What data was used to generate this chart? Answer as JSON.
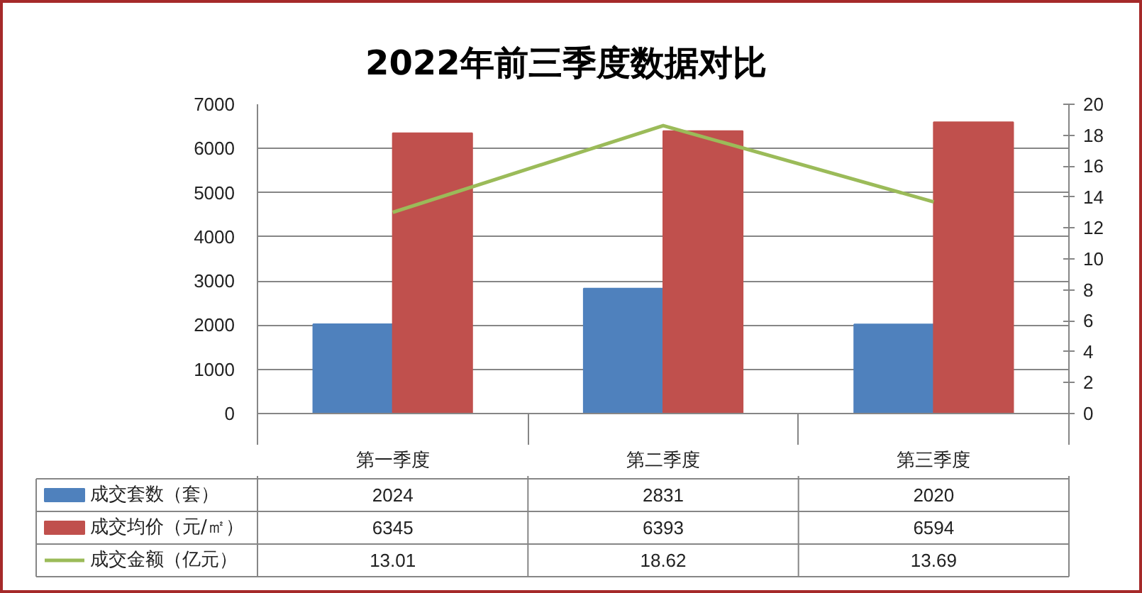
{
  "chart_data": {
    "type": "bar",
    "title": "2022年前三季度数据对比",
    "categories": [
      "第一季度",
      "第二季度",
      "第三季度"
    ],
    "series": [
      {
        "name": "成交套数（套）",
        "color": "#4f81bd",
        "values": [
          2024,
          2831,
          2020
        ]
      },
      {
        "name": "成交均价（元/㎡）",
        "color": "#c0504d",
        "values": [
          6345,
          6393,
          6594
        ]
      },
      {
        "name": "成交金额（亿元）",
        "type": "line",
        "axis": "y2",
        "color": "#9bbb59",
        "values": [
          13.01,
          18.62,
          13.69
        ]
      }
    ],
    "ylim": [
      0,
      7000
    ],
    "yticks": [
      0,
      1000,
      2000,
      3000,
      4000,
      5000,
      6000,
      7000
    ],
    "y2lim": [
      0,
      20
    ],
    "y2ticks": [
      0,
      2,
      4,
      6,
      8,
      10,
      12,
      14,
      16,
      18,
      20
    ],
    "grid": "y",
    "legend": "bottom",
    "data_labels": true
  }
}
